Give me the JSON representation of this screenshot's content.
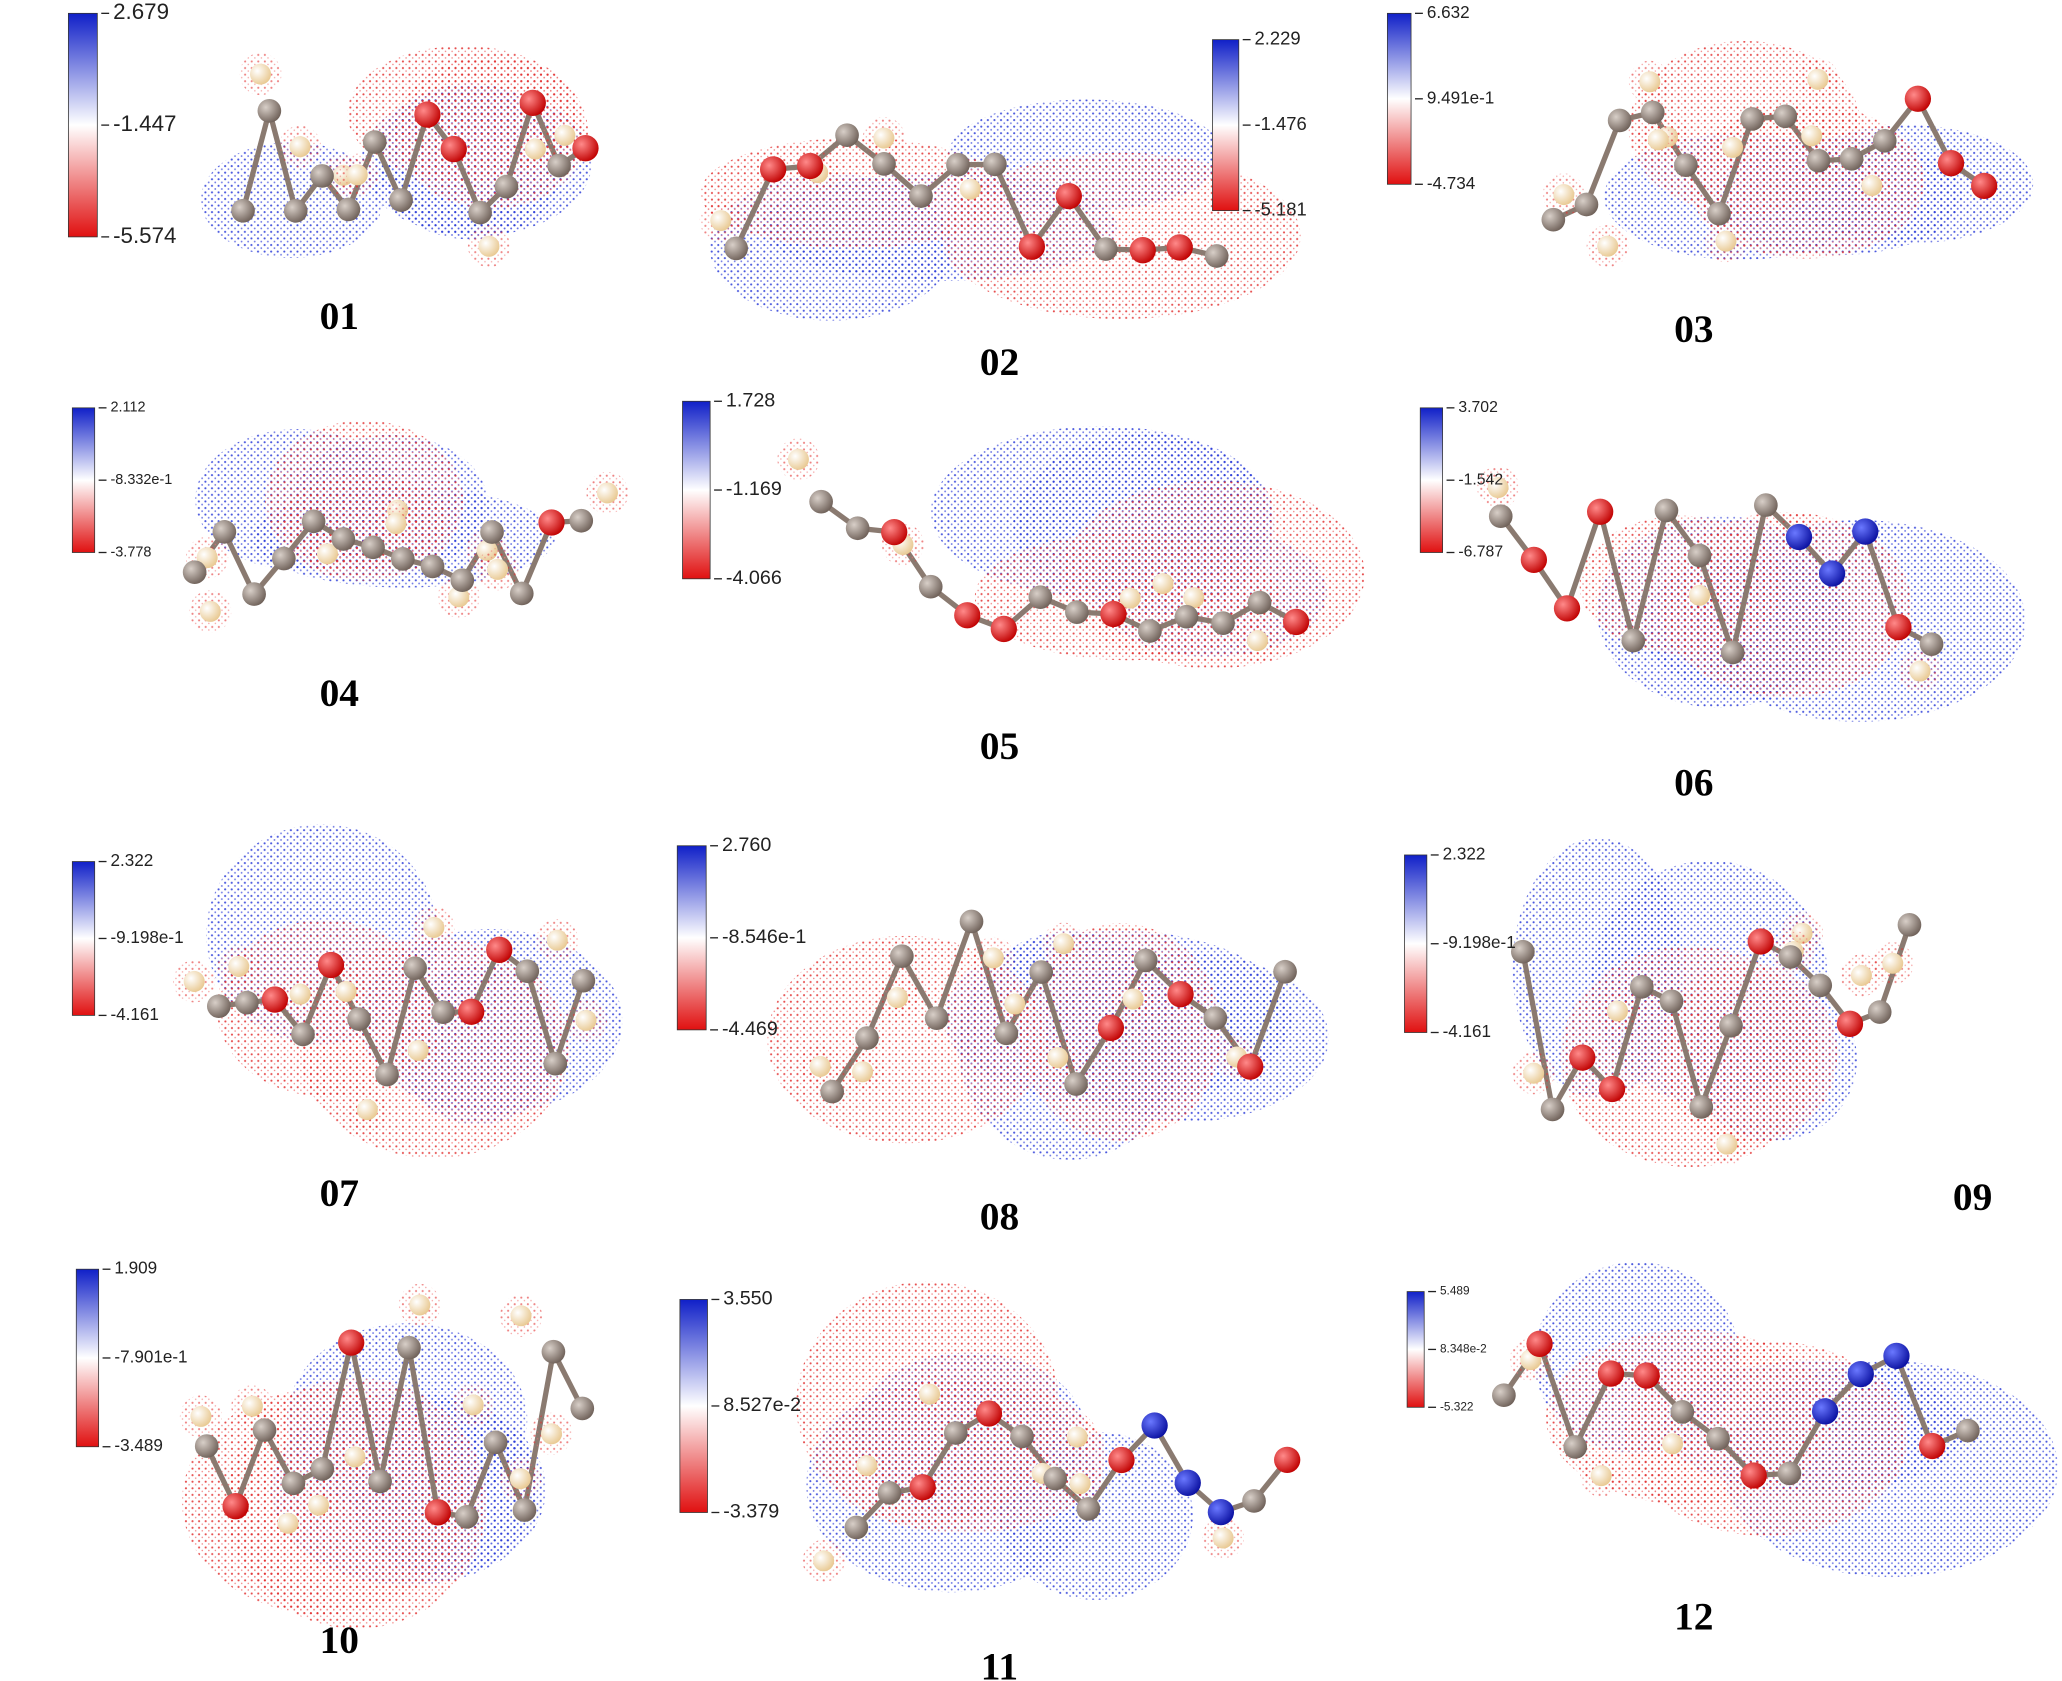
{
  "panels": [
    {
      "label": "01",
      "colorbar": {
        "max": "2.679",
        "mid": "-1.447",
        "min": "-5.574"
      }
    },
    {
      "label": "02",
      "colorbar": {
        "max": "2.229",
        "mid": "-1.476",
        "min": "-5.181"
      }
    },
    {
      "label": "03",
      "colorbar": {
        "max": "6.632",
        "mid": "9.491e-1",
        "min": "-4.734"
      }
    },
    {
      "label": "04",
      "colorbar": {
        "max": "2.112",
        "mid": "-8.332e-1",
        "min": "-3.778"
      }
    },
    {
      "label": "05",
      "colorbar": {
        "max": "1.728",
        "mid": "-1.169",
        "min": "-4.066"
      }
    },
    {
      "label": "06",
      "colorbar": {
        "max": "3.702",
        "mid": "-1.542",
        "min": "-6.787"
      }
    },
    {
      "label": "07",
      "colorbar": {
        "max": "2.322",
        "mid": "-9.198e-1",
        "min": "-4.161"
      }
    },
    {
      "label": "08",
      "colorbar": {
        "max": "2.760",
        "mid": "-8.546e-1",
        "min": "-4.469"
      }
    },
    {
      "label": "09",
      "colorbar": {
        "max": "2.322",
        "mid": "-9.198e-1",
        "min": "-4.161"
      }
    },
    {
      "label": "10",
      "colorbar": {
        "max": "1.909",
        "mid": "-7.901e-1",
        "min": "-3.489"
      }
    },
    {
      "label": "11",
      "colorbar": {
        "max": "3.550",
        "mid": "8.527e-2",
        "min": "-3.379"
      }
    },
    {
      "label": "12",
      "colorbar": {
        "max": "5.489",
        "mid": "8.348e-2",
        "min": "-5.322"
      }
    }
  ]
}
